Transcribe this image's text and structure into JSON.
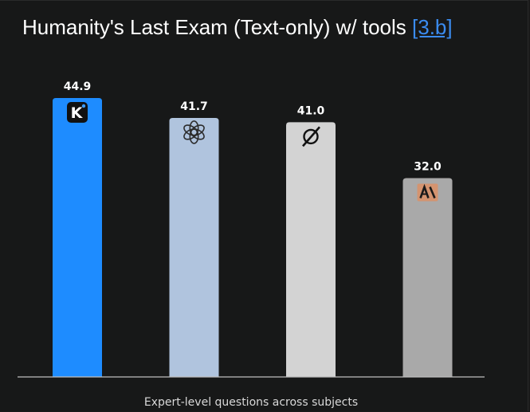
{
  "title": {
    "text": "Humanity's Last Exam (Text-only) w/ tools",
    "ref": "[3.b]"
  },
  "chart_data": {
    "type": "bar",
    "title": "Humanity's Last Exam (Text-only) w/ tools",
    "xlabel": "Expert-level questions across subjects",
    "ylabel": "",
    "ylim": [
      0,
      50
    ],
    "grid": false,
    "legend": "none",
    "bars": [
      {
        "value": 44.9,
        "label": "44.9",
        "color": "#1e8cff",
        "icon": "kimi-k-logo-icon"
      },
      {
        "value": 41.7,
        "label": "41.7",
        "color": "#b0c4de",
        "icon": "openai-logo-icon"
      },
      {
        "value": 41.0,
        "label": "41.0",
        "color": "#d3d3d3",
        "icon": "xai-grok-logo-icon"
      },
      {
        "value": 32.0,
        "label": "32.0",
        "color": "#a9a9a9",
        "icon": "anthropic-logo-icon"
      }
    ]
  },
  "colors": {
    "background": "#171818",
    "axis": "#bfbfbf",
    "label_text": "#ffffff",
    "ref_link": "#3b8cf0"
  }
}
